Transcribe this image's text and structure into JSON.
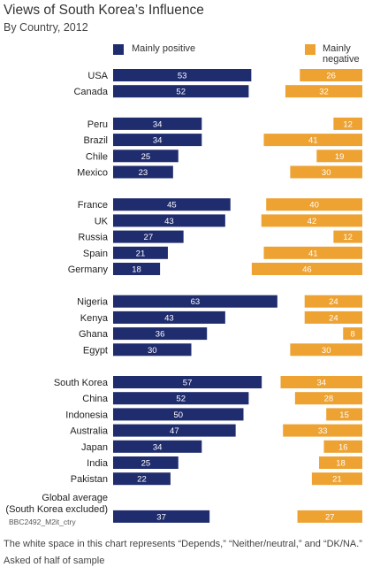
{
  "title": "Views of South Korea’s Influence",
  "subtitle": "By Country, 2012",
  "source_code": "BBC2492_M2it_ctry",
  "notes": [
    "The white space in this chart represents “Depends,” “Neither/neutral,” and “DK/NA.”",
    "Asked of half of sample"
  ],
  "colors": {
    "positive": "#1f2c6e",
    "negative": "#eda232"
  },
  "chart_data": {
    "type": "bar",
    "series": [
      {
        "name": "Mainly positive",
        "color": "#1f2c6e"
      },
      {
        "name": "Mainly negative",
        "color": "#eda232"
      }
    ],
    "groups": [
      {
        "rows": [
          {
            "label": "USA",
            "positive": 53,
            "negative": 26
          },
          {
            "label": "Canada",
            "positive": 52,
            "negative": 32
          }
        ]
      },
      {
        "rows": [
          {
            "label": "Peru",
            "positive": 34,
            "negative": 12
          },
          {
            "label": "Brazil",
            "positive": 34,
            "negative": 41
          },
          {
            "label": "Chile",
            "positive": 25,
            "negative": 19
          },
          {
            "label": "Mexico",
            "positive": 23,
            "negative": 30
          }
        ]
      },
      {
        "rows": [
          {
            "label": "France",
            "positive": 45,
            "negative": 40
          },
          {
            "label": "UK",
            "positive": 43,
            "negative": 42
          },
          {
            "label": "Russia",
            "positive": 27,
            "negative": 12
          },
          {
            "label": "Spain",
            "positive": 21,
            "negative": 41
          },
          {
            "label": "Germany",
            "positive": 18,
            "negative": 46
          }
        ]
      },
      {
        "rows": [
          {
            "label": "Nigeria",
            "positive": 63,
            "negative": 24
          },
          {
            "label": "Kenya",
            "positive": 43,
            "negative": 24
          },
          {
            "label": "Ghana",
            "positive": 36,
            "negative": 8
          },
          {
            "label": "Egypt",
            "positive": 30,
            "negative": 30
          }
        ]
      },
      {
        "rows": [
          {
            "label": "South Korea",
            "positive": 57,
            "negative": 34
          },
          {
            "label": "China",
            "positive": 52,
            "negative": 28
          },
          {
            "label": "Indonesia",
            "positive": 50,
            "negative": 15
          },
          {
            "label": "Australia",
            "positive": 47,
            "negative": 33
          },
          {
            "label": "Japan",
            "positive": 34,
            "negative": 16
          },
          {
            "label": "India",
            "positive": 25,
            "negative": 18
          },
          {
            "label": "Pakistan",
            "positive": 22,
            "negative": 21
          }
        ]
      },
      {
        "rows": [
          {
            "label": [
              "Global average",
              "(South Korea excluded)"
            ],
            "positive": 37,
            "negative": 27
          }
        ]
      }
    ]
  }
}
